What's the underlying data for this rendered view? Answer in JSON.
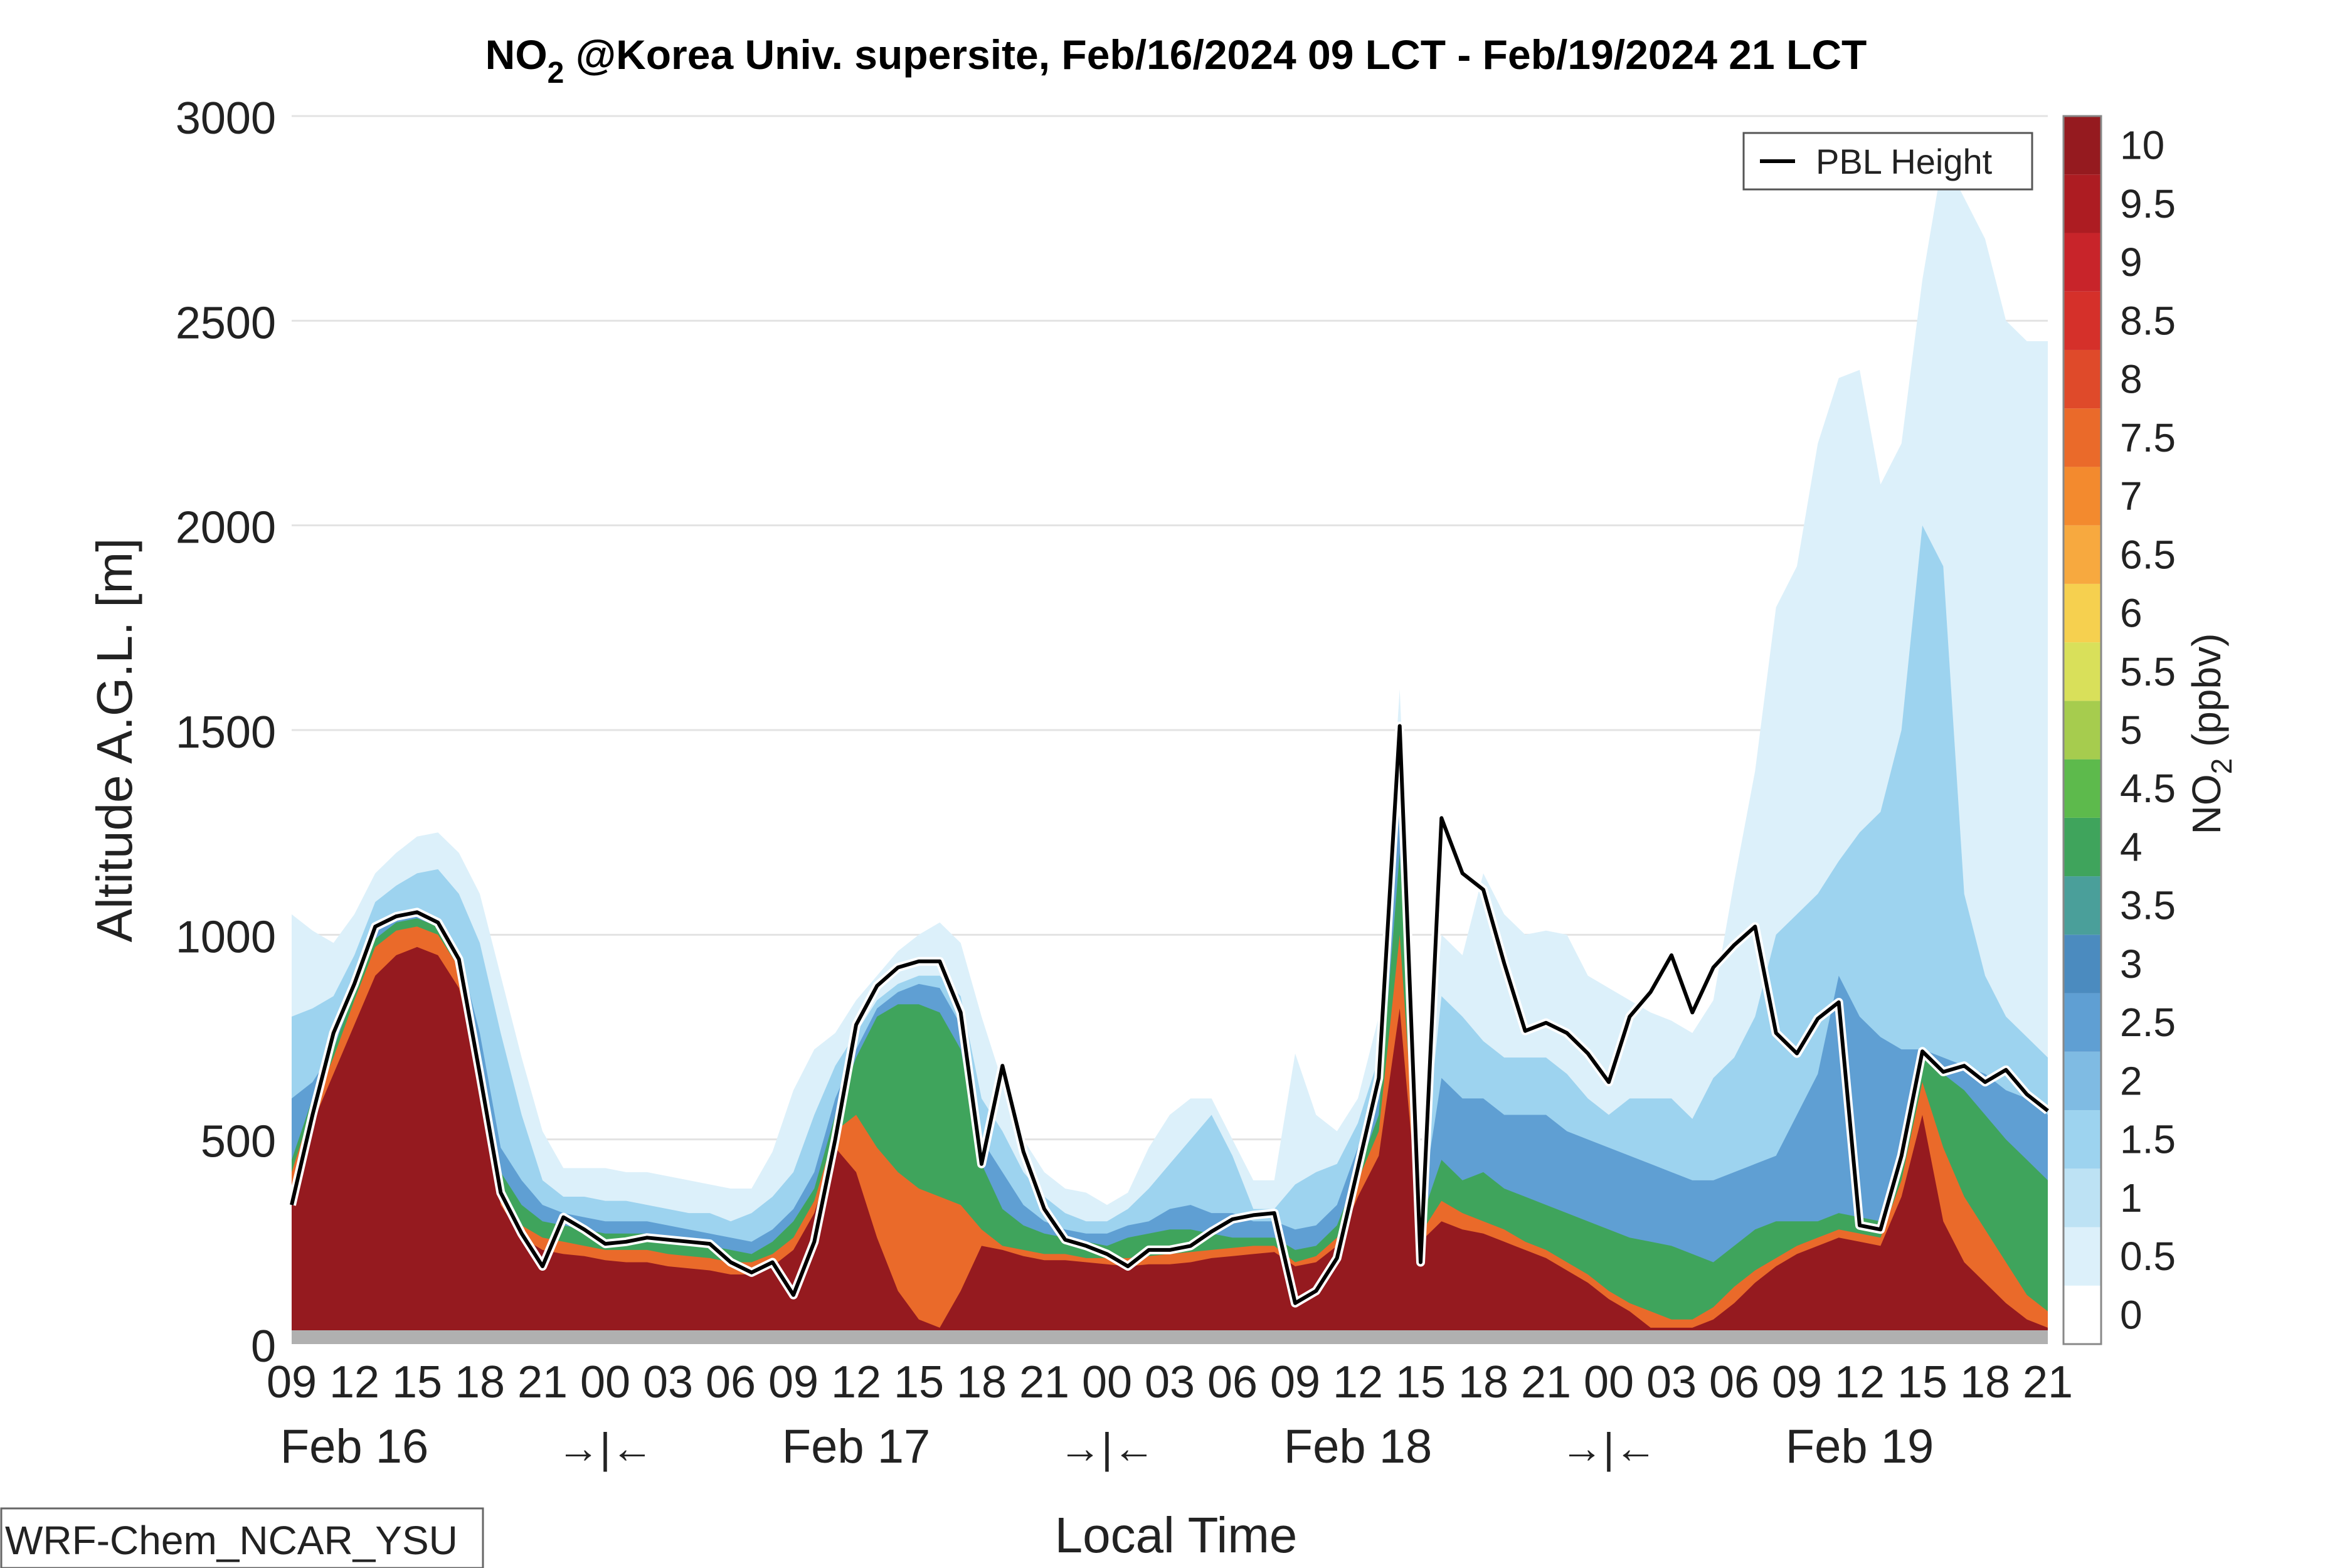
{
  "chart_data": {
    "type": "heatmap",
    "title": {
      "species_main": "NO",
      "species_sub": "2",
      "rest": " @Korea Univ. supersite, Feb/16/2024 09 LCT - Feb/19/2024 21 LCT"
    },
    "xlabel": "Local Time",
    "ylabel": "Altitude A.G.L. [m]",
    "ylim": [
      0,
      3000
    ],
    "y_ticks": [
      "0",
      "500",
      "1000",
      "1500",
      "2000",
      "2500",
      "3000"
    ],
    "x_tick_labels": [
      "09",
      "12",
      "15",
      "18",
      "21",
      "00",
      "03",
      "06",
      "09",
      "12",
      "15",
      "18",
      "21",
      "00",
      "03",
      "06",
      "09",
      "12",
      "15",
      "18",
      "21",
      "00",
      "03",
      "06",
      "09",
      "12",
      "15",
      "18",
      "21"
    ],
    "x_hours_start": 0,
    "x_hours_end": 84,
    "x_date_labels": [
      {
        "text": "Feb 16",
        "hour": 3
      },
      {
        "text": "Feb 17",
        "hour": 27
      },
      {
        "text": "Feb 18",
        "hour": 51
      },
      {
        "text": "Feb 19",
        "hour": 75
      }
    ],
    "x_break_marker": "→|←",
    "x_break_hours": [
      15,
      39,
      63
    ],
    "colorbar": {
      "label_main": "NO",
      "label_sub": "2",
      "label_unit": " (ppbv)",
      "levels": [
        "0",
        "0.5",
        "1",
        "1.5",
        "2",
        "2.5",
        "3",
        "3.5",
        "4",
        "4.5",
        "5",
        "5.5",
        "6",
        "6.5",
        "7",
        "7.5",
        "8",
        "8.5",
        "9",
        "9.5",
        "10"
      ],
      "colors": [
        "#ffffff",
        "#dcf0fa",
        "#bde2f4",
        "#9dd3ef",
        "#7fbbe3",
        "#5f9fd3",
        "#4b8bbf",
        "#4a9f9a",
        "#3fa45c",
        "#5dba4c",
        "#a6cc4e",
        "#d9e05a",
        "#f6d04f",
        "#f7a93f",
        "#f38a2e",
        "#ea6a2a",
        "#df4a2a",
        "#d5302a",
        "#c8242a",
        "#ad1c22",
        "#951a1f"
      ]
    },
    "legend": {
      "position": "top-right",
      "entries": [
        "PBL Height"
      ]
    },
    "series": [
      {
        "name": "PBL Height",
        "x": [
          0,
          1,
          2,
          3,
          4,
          5,
          6,
          7,
          8,
          9,
          10,
          11,
          12,
          13,
          14,
          15,
          16,
          17,
          18,
          19,
          20,
          21,
          22,
          23,
          24,
          25,
          26,
          27,
          28,
          29,
          30,
          31,
          32,
          33,
          34,
          35,
          36,
          37,
          38,
          39,
          40,
          41,
          42,
          43,
          44,
          45,
          46,
          47,
          48,
          49,
          50,
          51,
          52,
          53,
          54,
          55,
          56,
          57,
          58,
          59,
          60,
          61,
          62,
          63,
          64,
          65,
          66,
          67,
          68,
          69,
          70,
          71,
          72,
          73,
          74,
          75,
          76,
          77,
          78,
          79,
          80,
          81,
          82,
          83,
          84
        ],
        "values": [
          340,
          560,
          760,
          880,
          1020,
          1045,
          1055,
          1030,
          940,
          660,
          370,
          270,
          190,
          310,
          280,
          245,
          250,
          260,
          255,
          250,
          245,
          200,
          175,
          200,
          120,
          250,
          500,
          780,
          875,
          920,
          935,
          935,
          810,
          440,
          680,
          470,
          330,
          255,
          240,
          220,
          190,
          230,
          230,
          240,
          275,
          305,
          315,
          320,
          100,
          130,
          210,
          430,
          650,
          1510,
          200,
          1285,
          1150,
          1110,
          930,
          765,
          785,
          760,
          710,
          640,
          800,
          860,
          950,
          810,
          920,
          975,
          1020,
          760,
          710,
          795,
          835,
          290,
          280,
          460,
          715,
          665,
          680,
          640,
          670,
          610,
          570
        ]
      }
    ],
    "field_layers_m": {
      "description": "Upper altitude (m AGL) of NO2 bands at each hour, by level threshold (ppbv)",
      "thresholds": [
        0.5,
        1.5,
        3,
        5,
        8,
        10
      ],
      "tops": [
        [
          1050,
          1010,
          980,
          1050,
          1150,
          1200,
          1240,
          1250,
          1200,
          1100,
          900,
          700,
          520,
          430,
          430,
          430,
          420,
          420,
          410,
          400,
          390,
          380,
          380,
          470,
          620,
          720,
          760,
          840,
          900,
          960,
          1000,
          1030,
          980,
          800,
          640,
          500,
          420,
          380,
          370,
          340,
          370,
          480,
          560,
          600,
          600,
          500,
          400,
          400,
          710,
          560,
          520,
          600,
          800,
          1600,
          400,
          1000,
          950,
          1150,
          1050,
          1000,
          1010,
          1000,
          900,
          870,
          840,
          810,
          790,
          760,
          840,
          1130,
          1400,
          1800,
          1900,
          2200,
          2360,
          2380,
          2100,
          2200,
          2600,
          2900,
          2800,
          2700,
          2500,
          2450,
          2450
        ],
        [
          800,
          820,
          850,
          950,
          1080,
          1120,
          1150,
          1160,
          1100,
          980,
          760,
          560,
          400,
          360,
          360,
          350,
          350,
          340,
          330,
          320,
          320,
          300,
          320,
          360,
          420,
          560,
          680,
          760,
          840,
          880,
          900,
          900,
          850,
          600,
          520,
          420,
          360,
          320,
          300,
          300,
          330,
          380,
          440,
          500,
          560,
          460,
          330,
          330,
          390,
          420,
          440,
          540,
          700,
          1450,
          360,
          850,
          800,
          740,
          700,
          700,
          700,
          660,
          600,
          560,
          600,
          600,
          600,
          550,
          650,
          700,
          800,
          1000,
          1050,
          1100,
          1180,
          1250,
          1300,
          1500,
          2000,
          1900,
          1100,
          900,
          800,
          750,
          700
        ],
        [
          600,
          640,
          720,
          880,
          1010,
          1050,
          1060,
          1040,
          960,
          760,
          480,
          400,
          340,
          320,
          310,
          300,
          300,
          300,
          290,
          280,
          270,
          260,
          250,
          280,
          330,
          420,
          600,
          720,
          820,
          860,
          880,
          870,
          780,
          500,
          420,
          340,
          300,
          280,
          270,
          270,
          290,
          300,
          330,
          340,
          320,
          320,
          300,
          300,
          280,
          290,
          340,
          480,
          600,
          1350,
          320,
          650,
          600,
          600,
          560,
          560,
          560,
          520,
          500,
          480,
          460,
          440,
          420,
          400,
          400,
          420,
          440,
          460,
          560,
          660,
          900,
          800,
          750,
          720,
          720,
          700,
          680,
          660,
          620,
          600,
          560
        ],
        [
          450,
          600,
          720,
          860,
          990,
          1030,
          1040,
          1020,
          940,
          720,
          420,
          340,
          300,
          290,
          280,
          270,
          270,
          270,
          260,
          250,
          240,
          230,
          220,
          250,
          300,
          380,
          560,
          700,
          800,
          830,
          830,
          810,
          720,
          440,
          330,
          290,
          270,
          260,
          250,
          240,
          260,
          270,
          280,
          280,
          270,
          260,
          260,
          260,
          230,
          240,
          290,
          420,
          560,
          1200,
          300,
          450,
          400,
          420,
          380,
          360,
          340,
          320,
          300,
          280,
          260,
          250,
          240,
          220,
          200,
          240,
          280,
          300,
          300,
          300,
          320,
          310,
          300,
          450,
          720,
          660,
          620,
          560,
          500,
          450,
          400
        ],
        [
          420,
          580,
          700,
          840,
          970,
          1010,
          1020,
          1000,
          920,
          700,
          380,
          290,
          260,
          250,
          240,
          230,
          230,
          230,
          220,
          215,
          210,
          200,
          200,
          220,
          260,
          350,
          520,
          560,
          480,
          420,
          380,
          360,
          340,
          280,
          240,
          230,
          220,
          220,
          210,
          210,
          210,
          215,
          220,
          225,
          230,
          235,
          240,
          240,
          200,
          215,
          260,
          400,
          520,
          1000,
          270,
          350,
          320,
          300,
          280,
          250,
          230,
          200,
          170,
          130,
          100,
          80,
          60,
          60,
          90,
          140,
          180,
          210,
          240,
          260,
          280,
          270,
          260,
          400,
          640,
          480,
          360,
          280,
          200,
          120,
          80
        ],
        [
          340,
          540,
          660,
          780,
          900,
          950,
          970,
          950,
          870,
          650,
          340,
          260,
          230,
          220,
          215,
          205,
          200,
          200,
          190,
          185,
          180,
          170,
          170,
          190,
          230,
          320,
          480,
          420,
          260,
          130,
          60,
          40,
          130,
          240,
          230,
          215,
          205,
          205,
          200,
          195,
          190,
          195,
          195,
          200,
          210,
          215,
          220,
          225,
          190,
          200,
          240,
          360,
          460,
          820,
          250,
          300,
          280,
          270,
          250,
          230,
          210,
          180,
          150,
          110,
          80,
          40,
          40,
          40,
          60,
          100,
          150,
          190,
          220,
          240,
          260,
          250,
          240,
          360,
          560,
          300,
          200,
          150,
          100,
          60,
          40
        ]
      ]
    }
  },
  "badge": {
    "text": "WRF-Chem_NCAR_YSU"
  }
}
